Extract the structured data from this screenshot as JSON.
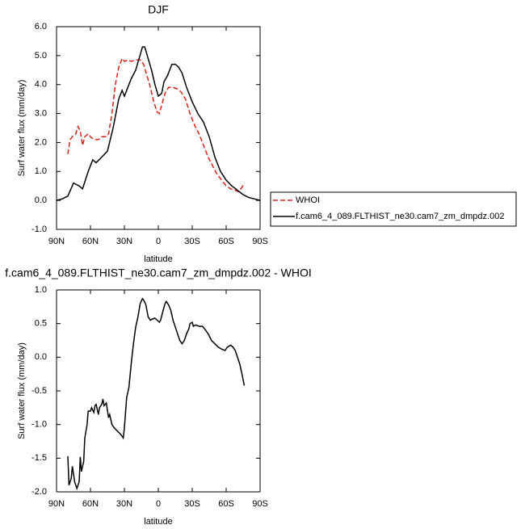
{
  "chart_data": [
    {
      "type": "line",
      "title": "DJF",
      "xlabel": "latitude",
      "ylabel": "Surf water flux (mm/day)",
      "xlim": [
        90,
        -90
      ],
      "xticks": [
        {
          "value": 90,
          "label": "90N"
        },
        {
          "value": 60,
          "label": "60N"
        },
        {
          "value": 30,
          "label": "30N"
        },
        0,
        {
          "value": -30,
          "label": "30S"
        },
        {
          "value": -60,
          "label": "60S"
        },
        {
          "value": -90,
          "label": "90S"
        }
      ],
      "ylim": [
        -1,
        6
      ],
      "yticks": [
        {
          "value": -1,
          "label": "-1.0"
        },
        {
          "value": 0,
          "label": "0.0"
        },
        {
          "value": 1,
          "label": "1.0"
        },
        {
          "value": 2,
          "label": "2.0"
        },
        {
          "value": 3,
          "label": "3.0"
        },
        {
          "value": 4,
          "label": "4.0"
        },
        {
          "value": 5,
          "label": "5.0"
        },
        {
          "value": 6,
          "label": "6.0"
        }
      ],
      "legend": "outside-right",
      "series": [
        {
          "name": "WHOI",
          "color": "#e0201b",
          "dashed": true,
          "x": [
            80,
            78,
            76,
            73,
            71,
            69,
            67,
            65,
            62,
            60,
            57,
            53,
            50,
            46,
            44,
            41,
            38,
            35,
            32,
            30,
            27,
            24,
            20,
            16,
            13,
            10,
            7,
            4,
            1,
            -1,
            -3,
            -6,
            -9,
            -13,
            -17,
            -20,
            -24,
            -28,
            -32,
            -36,
            -40,
            -44,
            -48,
            -52,
            -56,
            -60,
            -64,
            -68,
            -71,
            -74,
            -76
          ],
          "values": [
            1.6,
            2.1,
            2.2,
            2.3,
            2.55,
            2.4,
            1.9,
            2.2,
            2.3,
            2.2,
            2.1,
            2.1,
            2.2,
            2.2,
            2.3,
            3.0,
            4.0,
            4.6,
            4.9,
            4.8,
            4.85,
            4.8,
            4.85,
            4.85,
            4.7,
            4.3,
            3.9,
            3.4,
            3.05,
            3.0,
            3.3,
            3.7,
            3.9,
            3.9,
            3.85,
            3.75,
            3.5,
            3.0,
            2.6,
            2.3,
            1.9,
            1.5,
            1.2,
            0.9,
            0.7,
            0.5,
            0.4,
            0.35,
            0.3,
            0.45,
            0.6
          ]
        },
        {
          "name": "f.cam6_4_089.FLTHIST_ne30.cam7_zm_dmpdz.002",
          "color": "#000000",
          "dashed": false,
          "x": [
            90,
            85,
            80,
            75,
            70,
            67,
            62,
            58,
            55,
            50,
            45,
            40,
            35,
            32,
            30,
            27,
            24,
            20,
            17,
            14,
            12,
            9,
            6,
            3,
            0,
            -3,
            -5,
            -8,
            -12,
            -15,
            -18,
            -21,
            -25,
            -30,
            -35,
            -40,
            -45,
            -50,
            -55,
            -60,
            -65,
            -70,
            -75,
            -80,
            -85,
            -90
          ],
          "values": [
            0.0,
            0.05,
            0.15,
            0.6,
            0.5,
            0.4,
            1.0,
            1.4,
            1.3,
            1.5,
            1.7,
            2.5,
            3.5,
            3.8,
            3.6,
            3.9,
            4.2,
            4.5,
            4.9,
            5.3,
            5.3,
            4.9,
            4.5,
            4.0,
            3.6,
            3.7,
            4.1,
            4.3,
            4.7,
            4.7,
            4.6,
            4.4,
            3.9,
            3.4,
            3.0,
            2.7,
            2.2,
            1.5,
            1.0,
            0.7,
            0.5,
            0.35,
            0.2,
            0.1,
            0.05,
            0.0
          ]
        }
      ]
    },
    {
      "type": "line",
      "title": "f.cam6_4_089.FLTHIST_ne30.cam7_zm_dmpdz.002 - WHOI",
      "xlabel": "latitude",
      "ylabel": "Surf water flux (mm/day)",
      "xlim": [
        90,
        -90
      ],
      "xticks": [
        {
          "value": 90,
          "label": "90N"
        },
        {
          "value": 60,
          "label": "60N"
        },
        {
          "value": 30,
          "label": "30N"
        },
        0,
        {
          "value": -30,
          "label": "30S"
        },
        {
          "value": -60,
          "label": "60S"
        },
        {
          "value": -90,
          "label": "90S"
        }
      ],
      "ylim": [
        -2,
        1
      ],
      "yticks": [
        {
          "value": -2,
          "label": "-2.0"
        },
        -1.5,
        {
          "value": -1,
          "label": "-1.0"
        },
        -0.5,
        {
          "value": 0,
          "label": "0.0"
        },
        0.5,
        {
          "value": 1,
          "label": "1.0"
        }
      ],
      "series": [
        {
          "color": "#000000",
          "dashed": false,
          "x": [
            80,
            79,
            77,
            76,
            74,
            72,
            70,
            69,
            68,
            66,
            65,
            63,
            62,
            60,
            59,
            57,
            56,
            55,
            53,
            52,
            50,
            49,
            48,
            46,
            44,
            43,
            41,
            39,
            36,
            33,
            31,
            30,
            28,
            26,
            24,
            22,
            20,
            18,
            16,
            14,
            13,
            11,
            9,
            7,
            5,
            3,
            1,
            -1,
            -2,
            -4,
            -6,
            -7,
            -9,
            -11,
            -13,
            -15,
            -17,
            -19,
            -21,
            -23,
            -25,
            -27,
            -28,
            -30,
            -31,
            -33,
            -36,
            -39,
            -41,
            -44,
            -47,
            -50,
            -53,
            -56,
            -59,
            -61,
            -64,
            -66,
            -68,
            -70,
            -72,
            -74,
            -76
          ],
          "values": [
            -1.47,
            -1.9,
            -1.8,
            -1.62,
            -1.85,
            -1.95,
            -1.85,
            -1.48,
            -1.7,
            -1.55,
            -1.2,
            -1.0,
            -0.8,
            -0.8,
            -0.75,
            -0.82,
            -0.72,
            -0.7,
            -0.85,
            -0.75,
            -0.7,
            -0.62,
            -0.72,
            -0.68,
            -0.9,
            -0.85,
            -1.0,
            -1.05,
            -1.1,
            -1.15,
            -1.2,
            -1.05,
            -0.6,
            -0.45,
            -0.1,
            0.2,
            0.45,
            0.6,
            0.8,
            0.87,
            0.85,
            0.78,
            0.6,
            0.55,
            0.57,
            0.58,
            0.55,
            0.52,
            0.55,
            0.68,
            0.8,
            0.83,
            0.78,
            0.7,
            0.55,
            0.45,
            0.35,
            0.25,
            0.2,
            0.25,
            0.35,
            0.42,
            0.5,
            0.52,
            0.46,
            0.48,
            0.46,
            0.46,
            0.42,
            0.35,
            0.25,
            0.2,
            0.15,
            0.12,
            0.1,
            0.15,
            0.18,
            0.15,
            0.1,
            0.0,
            -0.1,
            -0.25,
            -0.42
          ]
        }
      ]
    }
  ]
}
